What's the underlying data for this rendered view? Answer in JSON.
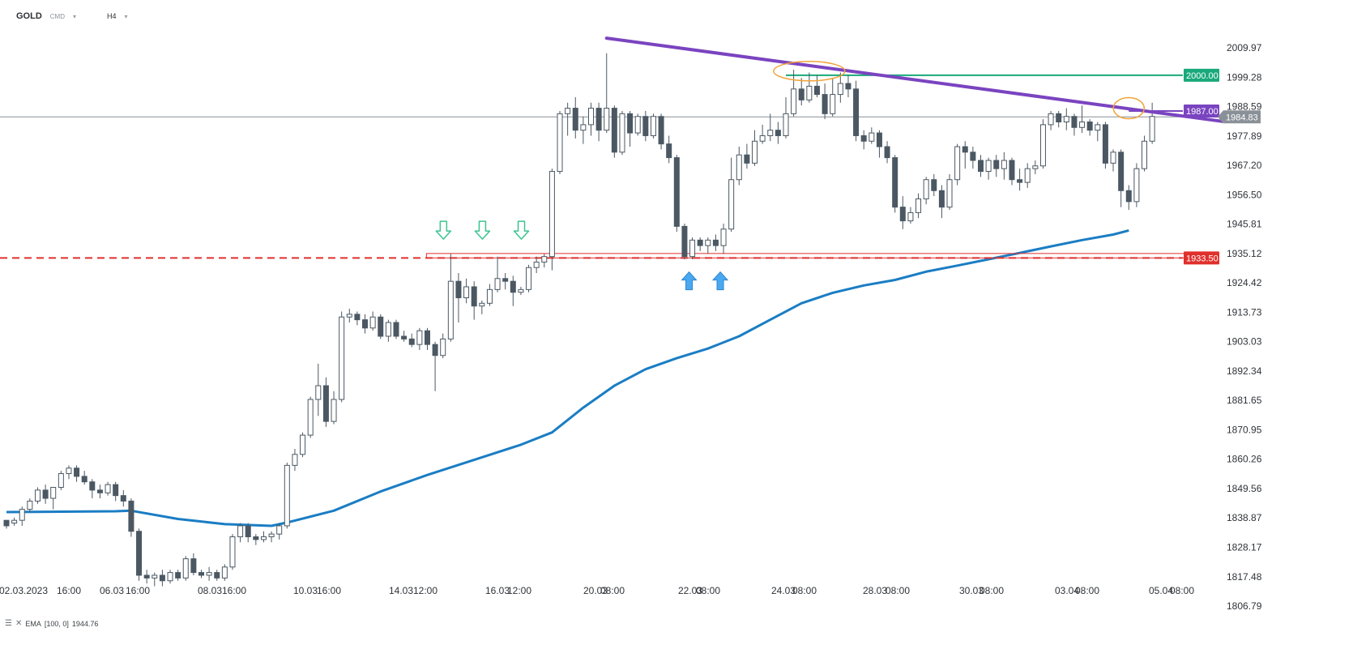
{
  "toolbar": {
    "symbol": "GOLD",
    "exchange": "CMD",
    "timeframe": "H4"
  },
  "legend": {
    "indicator": "EMA",
    "params": "[100, 0]",
    "value": "1944.76"
  },
  "colors": {
    "up_candle": "#ffffff",
    "down_candle": "#4b5863",
    "ema": "#1a7dc4",
    "trendline": "#7a44c0",
    "resistance": "#1aa97a",
    "support": "#e0302c",
    "current_price": "#8a9097",
    "highlight_ellipse": "#f2a33a",
    "signal_arrow_down": "#3cc48e",
    "signal_arrow_up": "#4aa8f0"
  },
  "chart_data": {
    "type": "candlestick",
    "y_range": [
      1806.79,
      2015
    ],
    "y_ticks": [
      "2009.97",
      "1999.28",
      "1988.59",
      "1977.89",
      "1967.20",
      "1956.50",
      "1945.81",
      "1935.12",
      "1924.42",
      "1913.73",
      "1903.03",
      "1892.34",
      "1881.65",
      "1870.95",
      "1860.26",
      "1849.56",
      "1838.87",
      "1828.17",
      "1817.48",
      "1806.79"
    ],
    "x_labels": [
      "02.03.2023",
      "16:00",
      "06.03",
      "16:00",
      "08.03",
      "16:00",
      "10.03",
      "16:00",
      "14.03",
      "12:00",
      "16.03",
      "12:00",
      "20.03",
      "08:00",
      "22.03",
      "08:00",
      "24.03",
      "08:00",
      "28.03",
      "08:00",
      "30.03",
      "08:00",
      "03.04",
      "08:00",
      "05.04",
      "08:00"
    ],
    "x_label_positions": [
      29,
      85,
      138,
      170,
      259,
      289,
      377,
      406,
      495,
      525,
      614,
      641,
      735,
      756,
      852,
      874,
      967,
      993,
      1080,
      1108,
      1199,
      1224,
      1317,
      1342,
      1433,
      1459
    ],
    "candles": [
      [
        1838,
        1836,
        1838,
        1835
      ],
      [
        1837,
        1838,
        1839,
        1836
      ],
      [
        1838,
        1842,
        1843,
        1836
      ],
      [
        1842,
        1845,
        1846,
        1841
      ],
      [
        1845,
        1849,
        1850,
        1844
      ],
      [
        1849,
        1846,
        1851,
        1844
      ],
      [
        1846,
        1850,
        1850,
        1842
      ],
      [
        1850,
        1855,
        1856,
        1849
      ],
      [
        1855,
        1857,
        1858,
        1853
      ],
      [
        1857,
        1854,
        1858,
        1852
      ],
      [
        1854,
        1852,
        1856,
        1851
      ],
      [
        1852,
        1849,
        1853,
        1846
      ],
      [
        1849,
        1848,
        1851,
        1846
      ],
      [
        1848,
        1851,
        1852,
        1847
      ],
      [
        1851,
        1847,
        1852,
        1845
      ],
      [
        1847,
        1845,
        1849,
        1843
      ],
      [
        1845,
        1834,
        1846,
        1832
      ],
      [
        1834,
        1818,
        1835,
        1816
      ],
      [
        1818,
        1817,
        1820,
        1815
      ],
      [
        1817,
        1818,
        1819,
        1814
      ],
      [
        1818,
        1816,
        1820,
        1814
      ],
      [
        1816,
        1819,
        1820,
        1815
      ],
      [
        1819,
        1817,
        1820,
        1816
      ],
      [
        1817,
        1824,
        1825,
        1816
      ],
      [
        1824,
        1819,
        1826,
        1818
      ],
      [
        1819,
        1818,
        1820,
        1817
      ],
      [
        1818,
        1819,
        1821,
        1816
      ],
      [
        1819,
        1817,
        1820,
        1816
      ],
      [
        1817,
        1821,
        1822,
        1816
      ],
      [
        1821,
        1832,
        1833,
        1820
      ],
      [
        1832,
        1836,
        1837,
        1830
      ],
      [
        1836,
        1832,
        1837,
        1830
      ],
      [
        1832,
        1831,
        1833,
        1829
      ],
      [
        1831,
        1832,
        1834,
        1830
      ],
      [
        1832,
        1833,
        1834,
        1830
      ],
      [
        1833,
        1836,
        1837,
        1831
      ],
      [
        1836,
        1858,
        1859,
        1835
      ],
      [
        1858,
        1862,
        1864,
        1856
      ],
      [
        1862,
        1869,
        1870,
        1861
      ],
      [
        1869,
        1882,
        1883,
        1868
      ],
      [
        1882,
        1887,
        1895,
        1876
      ],
      [
        1887,
        1874,
        1890,
        1872
      ],
      [
        1874,
        1882,
        1885,
        1873
      ],
      [
        1882,
        1912,
        1914,
        1881
      ],
      [
        1912,
        1913,
        1915,
        1910
      ],
      [
        1913,
        1911,
        1914,
        1909
      ],
      [
        1911,
        1908,
        1913,
        1906
      ],
      [
        1908,
        1912,
        1914,
        1907
      ],
      [
        1912,
        1905,
        1913,
        1904
      ],
      [
        1905,
        1910,
        1911,
        1903
      ],
      [
        1910,
        1905,
        1911,
        1904
      ],
      [
        1905,
        1904,
        1907,
        1903
      ],
      [
        1904,
        1902,
        1906,
        1901
      ],
      [
        1902,
        1907,
        1908,
        1900
      ],
      [
        1907,
        1902,
        1908,
        1900
      ],
      [
        1902,
        1898,
        1903,
        1885
      ],
      [
        1898,
        1904,
        1906,
        1897
      ],
      [
        1904,
        1925,
        1935,
        1903
      ],
      [
        1925,
        1919,
        1928,
        1910
      ],
      [
        1919,
        1923,
        1926,
        1917
      ],
      [
        1923,
        1916,
        1925,
        1911
      ],
      [
        1916,
        1917,
        1918,
        1913
      ],
      [
        1917,
        1922,
        1924,
        1916
      ],
      [
        1922,
        1926,
        1934,
        1921
      ],
      [
        1926,
        1925,
        1928,
        1922
      ],
      [
        1925,
        1921,
        1927,
        1916
      ],
      [
        1921,
        1922,
        1923,
        1920
      ],
      [
        1922,
        1930,
        1931,
        1921
      ],
      [
        1930,
        1932,
        1934,
        1928
      ],
      [
        1932,
        1934,
        1935,
        1930
      ],
      [
        1934,
        1965,
        1966,
        1929
      ],
      [
        1965,
        1986,
        1987,
        1964
      ],
      [
        1986,
        1988,
        1990,
        1978
      ],
      [
        1988,
        1980,
        1992,
        1977
      ],
      [
        1980,
        1982,
        1985,
        1975
      ],
      [
        1982,
        1988,
        1990,
        1978
      ],
      [
        1988,
        1980,
        1990,
        1976
      ],
      [
        1980,
        1988,
        2008,
        1979
      ],
      [
        1988,
        1972,
        1989,
        1970
      ],
      [
        1972,
        1986,
        1987,
        1971
      ],
      [
        1986,
        1979,
        1987,
        1974
      ],
      [
        1979,
        1985,
        1986,
        1978
      ],
      [
        1985,
        1978,
        1987,
        1976
      ],
      [
        1978,
        1985,
        1986,
        1977
      ],
      [
        1985,
        1975,
        1986,
        1973
      ],
      [
        1975,
        1970,
        1978,
        1968
      ],
      [
        1970,
        1945,
        1971,
        1943
      ],
      [
        1945,
        1934,
        1946,
        1933
      ],
      [
        1934,
        1940,
        1941,
        1933
      ],
      [
        1940,
        1938,
        1941,
        1936
      ],
      [
        1938,
        1940,
        1941,
        1935
      ],
      [
        1940,
        1938,
        1942,
        1936
      ],
      [
        1938,
        1944,
        1946,
        1935
      ],
      [
        1944,
        1962,
        1970,
        1943
      ],
      [
        1962,
        1971,
        1974,
        1960
      ],
      [
        1971,
        1968,
        1975,
        1966
      ],
      [
        1968,
        1976,
        1980,
        1967
      ],
      [
        1976,
        1978,
        1982,
        1975
      ],
      [
        1978,
        1980,
        1986,
        1976
      ],
      [
        1980,
        1978,
        1983,
        1975
      ],
      [
        1978,
        1986,
        1992,
        1977
      ],
      [
        1986,
        1995,
        2002,
        1985
      ],
      [
        1995,
        1991,
        1999,
        1989
      ],
      [
        1991,
        1996,
        2001,
        1990
      ],
      [
        1996,
        1993,
        2000,
        1992
      ],
      [
        1993,
        1986,
        1997,
        1984
      ],
      [
        1986,
        1993,
        1999,
        1985
      ],
      [
        1993,
        1997,
        2001,
        1990
      ],
      [
        1997,
        1995,
        2000,
        1992
      ],
      [
        1995,
        1978,
        1998,
        1976
      ],
      [
        1978,
        1976,
        1980,
        1973
      ],
      [
        1976,
        1979,
        1981,
        1975
      ],
      [
        1979,
        1974,
        1980,
        1970
      ],
      [
        1974,
        1970,
        1976,
        1968
      ],
      [
        1970,
        1952,
        1971,
        1950
      ],
      [
        1952,
        1947,
        1956,
        1944
      ],
      [
        1947,
        1950,
        1952,
        1946
      ],
      [
        1950,
        1955,
        1957,
        1948
      ],
      [
        1955,
        1962,
        1963,
        1953
      ],
      [
        1962,
        1958,
        1964,
        1956
      ],
      [
        1958,
        1952,
        1960,
        1948
      ],
      [
        1952,
        1962,
        1964,
        1951
      ],
      [
        1962,
        1974,
        1975,
        1960
      ],
      [
        1974,
        1972,
        1976,
        1966
      ],
      [
        1972,
        1969,
        1974,
        1966
      ],
      [
        1969,
        1965,
        1971,
        1963
      ],
      [
        1965,
        1969,
        1970,
        1962
      ],
      [
        1969,
        1966,
        1971,
        1963
      ],
      [
        1966,
        1969,
        1972,
        1962
      ],
      [
        1969,
        1962,
        1970,
        1960
      ],
      [
        1962,
        1961,
        1966,
        1958
      ],
      [
        1961,
        1966,
        1968,
        1959
      ],
      [
        1966,
        1967,
        1969,
        1964
      ],
      [
        1967,
        1982,
        1984,
        1966
      ],
      [
        1982,
        1986,
        1987,
        1980
      ],
      [
        1986,
        1983,
        1987,
        1981
      ],
      [
        1983,
        1985,
        1988,
        1980
      ],
      [
        1985,
        1981,
        1986,
        1978
      ],
      [
        1981,
        1983,
        1989,
        1979
      ],
      [
        1983,
        1980,
        1984,
        1978
      ],
      [
        1980,
        1982,
        1983,
        1976
      ],
      [
        1982,
        1968,
        1983,
        1966
      ],
      [
        1968,
        1972,
        1973,
        1965
      ],
      [
        1972,
        1958,
        1973,
        1952
      ],
      [
        1958,
        1954,
        1960,
        1951
      ],
      [
        1954,
        1966,
        1968,
        1952
      ],
      [
        1966,
        1976,
        1978,
        1965
      ],
      [
        1976,
        1985,
        1990,
        1975
      ]
    ],
    "ema": {
      "name": "EMA",
      "points": [
        [
          0,
          1841.0
        ],
        [
          14,
          1841.3
        ],
        [
          16,
          1841.5
        ],
        [
          22,
          1838.5
        ],
        [
          28,
          1836.6
        ],
        [
          34,
          1836.0
        ],
        [
          36,
          1837.2
        ],
        [
          42,
          1841.5
        ],
        [
          48,
          1848.5
        ],
        [
          54,
          1854.5
        ],
        [
          60,
          1860.0
        ],
        [
          66,
          1865.5
        ],
        [
          70,
          1870.0
        ],
        [
          74,
          1879.0
        ],
        [
          78,
          1887.0
        ],
        [
          82,
          1893.0
        ],
        [
          86,
          1897.0
        ],
        [
          90,
          1900.5
        ],
        [
          94,
          1905.0
        ],
        [
          98,
          1911.0
        ],
        [
          102,
          1917.0
        ],
        [
          106,
          1920.8
        ],
        [
          110,
          1923.5
        ],
        [
          114,
          1925.5
        ],
        [
          118,
          1928.5
        ],
        [
          122,
          1930.7
        ],
        [
          126,
          1933.0
        ],
        [
          130,
          1935.3
        ],
        [
          134,
          1937.7
        ],
        [
          138,
          1940.0
        ],
        [
          142,
          1942.0
        ],
        [
          144,
          1943.5
        ]
      ]
    },
    "levels": [
      {
        "name": "resistance",
        "value": 2000.0,
        "label": "2000.00"
      },
      {
        "name": "trendline",
        "value": 1987.0,
        "label": "1987.00"
      },
      {
        "name": "current",
        "value": 1984.83,
        "label": "1984.83"
      },
      {
        "name": "support",
        "value": 1933.5,
        "label": "1933.50"
      }
    ],
    "trendline": {
      "from": [
        77,
        2013.5
      ],
      "to": [
        156,
        1983.2
      ]
    },
    "resistance_segment": {
      "from_candle": 100,
      "value": 2000.0
    },
    "support_zone": {
      "from_candle": 57,
      "top": 1935.12,
      "bottom": 1933.5
    },
    "ellipses": [
      {
        "candle": 103,
        "value": 2001.5
      },
      {
        "candle": 144,
        "value": 1988.0
      }
    ],
    "signals_down": [
      {
        "candle": 57,
        "value": 1938
      },
      {
        "candle": 62,
        "value": 1938
      },
      {
        "candle": 67,
        "value": 1938
      }
    ],
    "signals_up": [
      {
        "candle": 88,
        "value": 1929
      },
      {
        "candle": 92,
        "value": 1929
      }
    ]
  }
}
